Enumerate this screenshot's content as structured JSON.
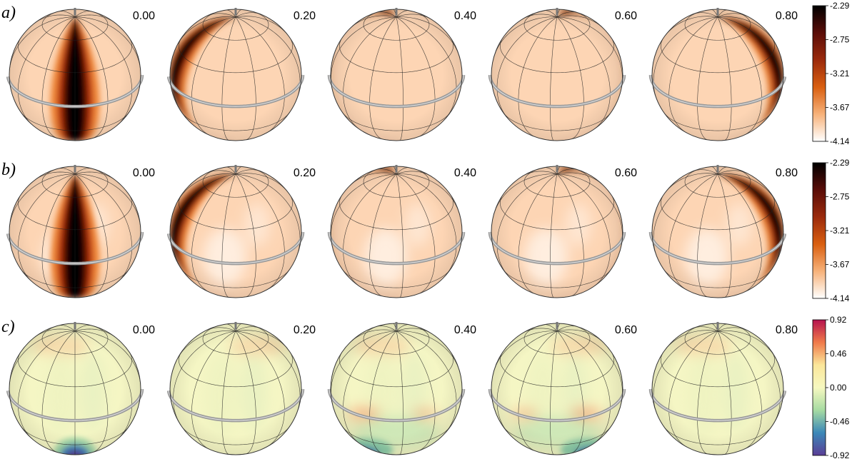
{
  "figure": {
    "rows": [
      {
        "label": "a)",
        "map": "model",
        "phases": [
          "0.00",
          "0.20",
          "0.40",
          "0.60",
          "0.80"
        ],
        "colorbar": {
          "ticks": [
            "-2.29",
            "-2.75",
            "-3.21",
            "-3.67",
            "-4.14"
          ],
          "colors": [
            "#000000",
            "#5a0d08",
            "#9b2a0c",
            "#d95f10",
            "#f7b27a",
            "#ffffff"
          ]
        }
      },
      {
        "label": "b)",
        "map": "reconstruction",
        "phases": [
          "0.00",
          "0.20",
          "0.40",
          "0.60",
          "0.80"
        ],
        "colorbar": {
          "ticks": [
            "-2.29",
            "-2.75",
            "-3.21",
            "-3.67",
            "-4.14"
          ],
          "colors": [
            "#000000",
            "#5a0d08",
            "#9b2a0c",
            "#d95f10",
            "#f7b27a",
            "#ffffff"
          ]
        }
      },
      {
        "label": "c)",
        "map": "difference",
        "phases": [
          "0.00",
          "0.20",
          "0.40",
          "0.60",
          "0.80"
        ],
        "colorbar": {
          "ticks": [
            "0.92",
            "0.46",
            "0.00",
            "-0.46",
            "-0.92"
          ],
          "colors": [
            "#b5134e",
            "#f07a4a",
            "#fbe69a",
            "#f6f8c0",
            "#a6dba2",
            "#3b88b8",
            "#5a3e96"
          ]
        }
      }
    ],
    "colors": {
      "base_spot": "#fdd5b4",
      "base_difference": "#f5f6c4",
      "ring": "#9a9a9a"
    }
  }
}
